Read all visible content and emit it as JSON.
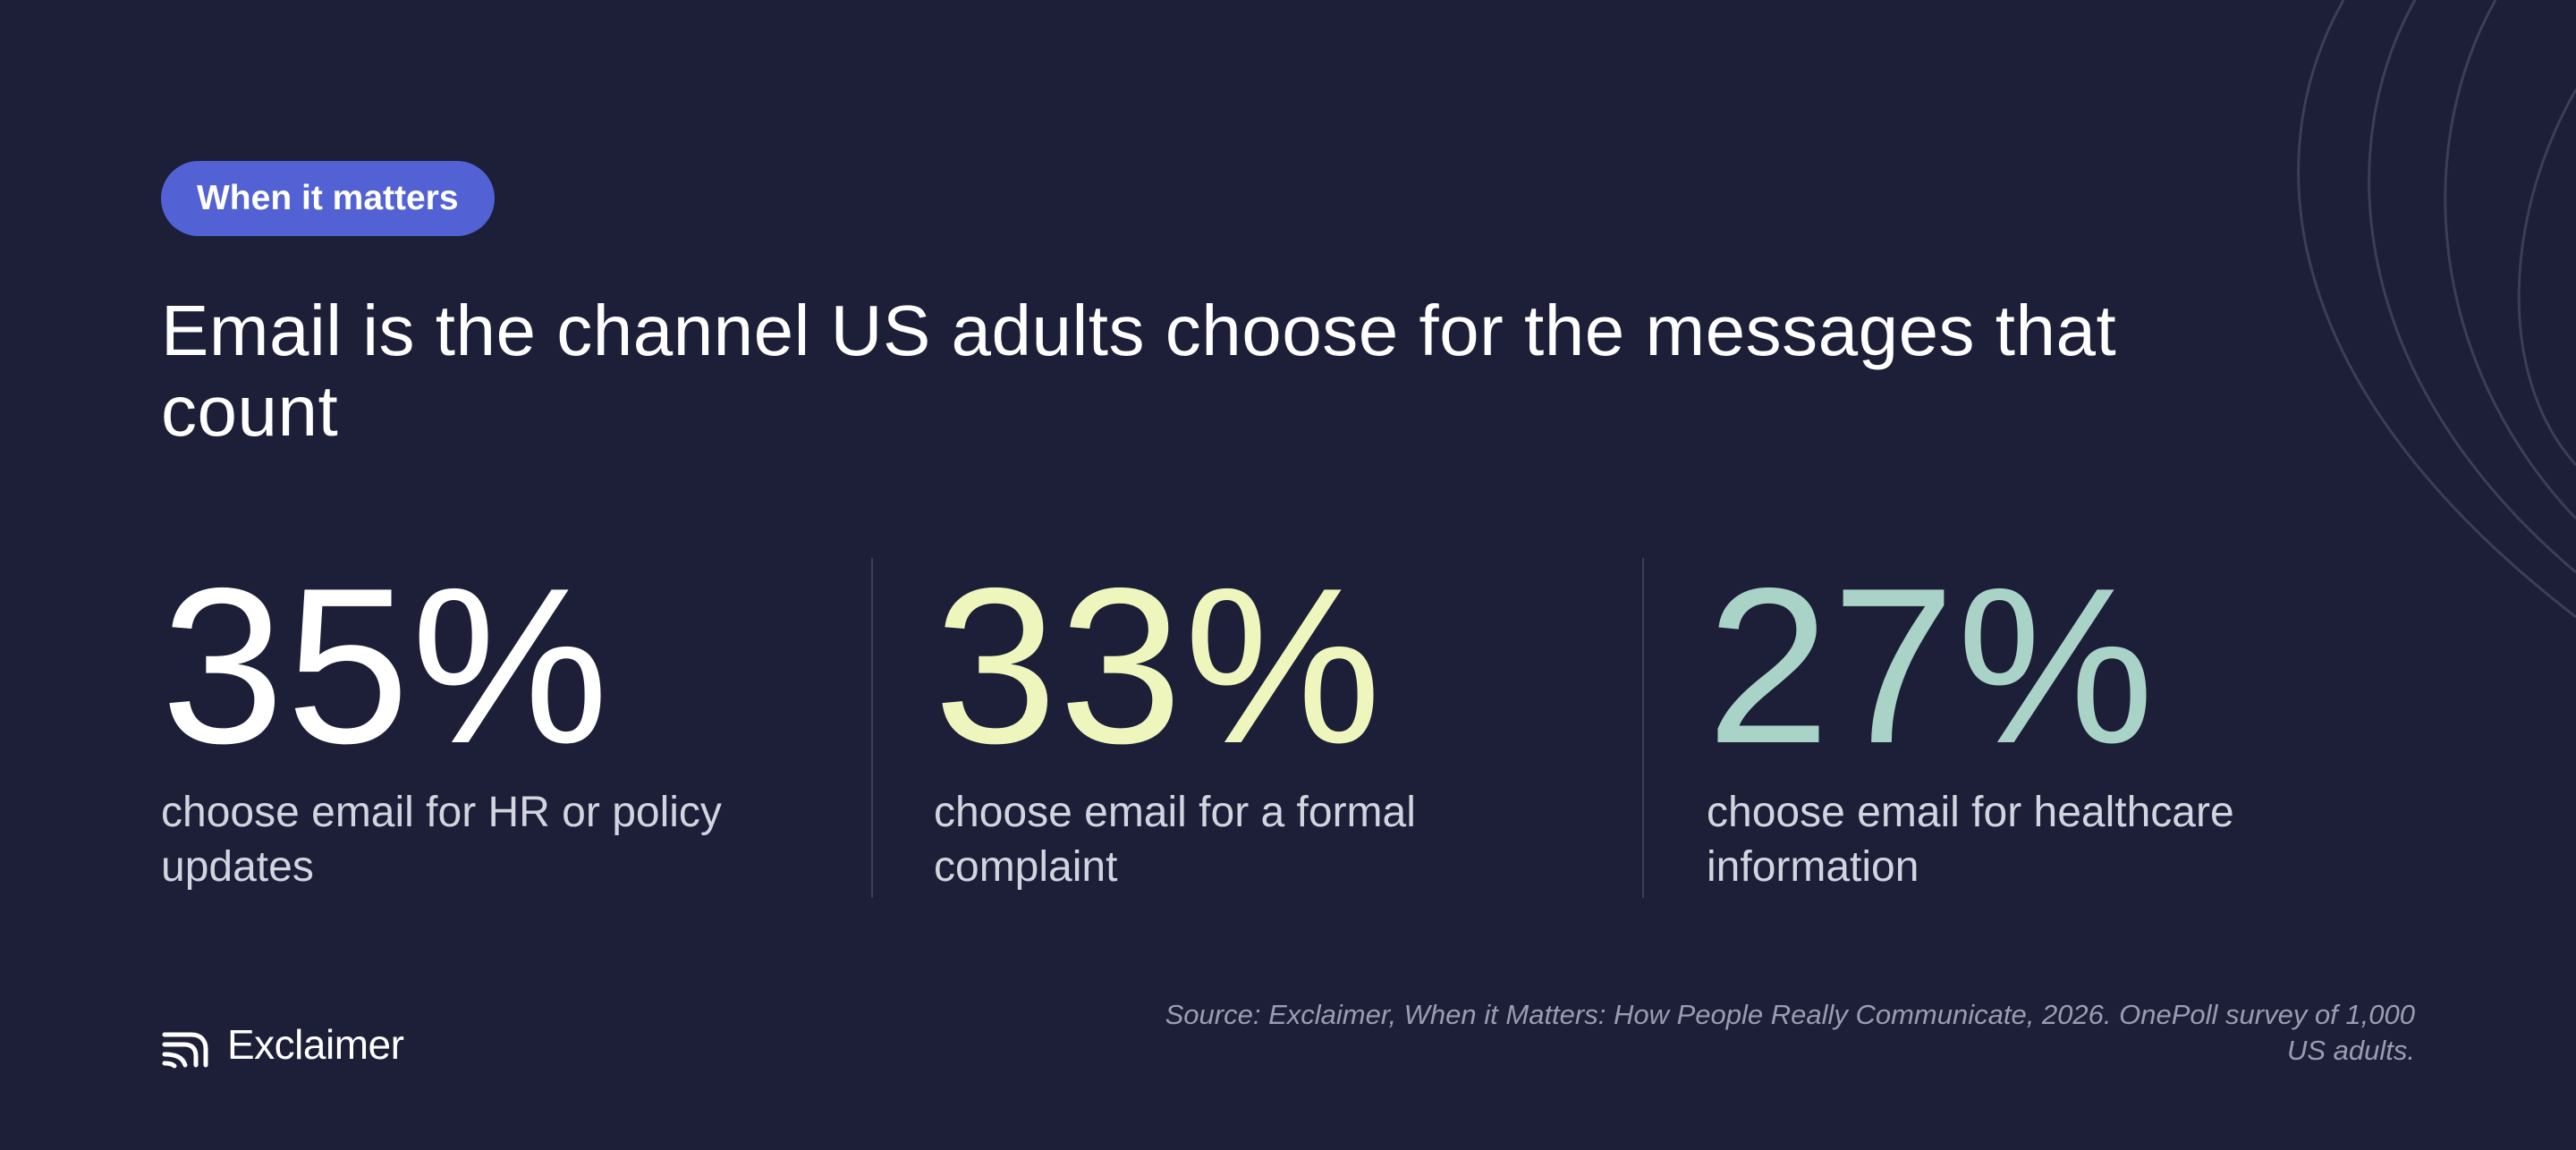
{
  "badge": {
    "label": "When it matters",
    "color": "#5262d4"
  },
  "headline": "Email is the channel US adults choose for the messages that count",
  "stats": [
    {
      "value": "35%",
      "label": "choose email for HR or policy updates",
      "color": "#ffffff"
    },
    {
      "value": "33%",
      "label": "choose email for a formal complaint",
      "color": "#eef6bd"
    },
    {
      "value": "27%",
      "label": "choose email for healthcare information",
      "color": "#a9d3c6"
    }
  ],
  "brand": {
    "logo_icon": "exclaimer-logo-icon",
    "name": "Exclaimer"
  },
  "source": "Source: Exclaimer, When it Matters: How People Really Communicate, 2026. OnePoll survey of 1,000 US adults.",
  "colors": {
    "background": "#1c1f37",
    "text": "#ffffff",
    "muted": "#9a9db2"
  }
}
